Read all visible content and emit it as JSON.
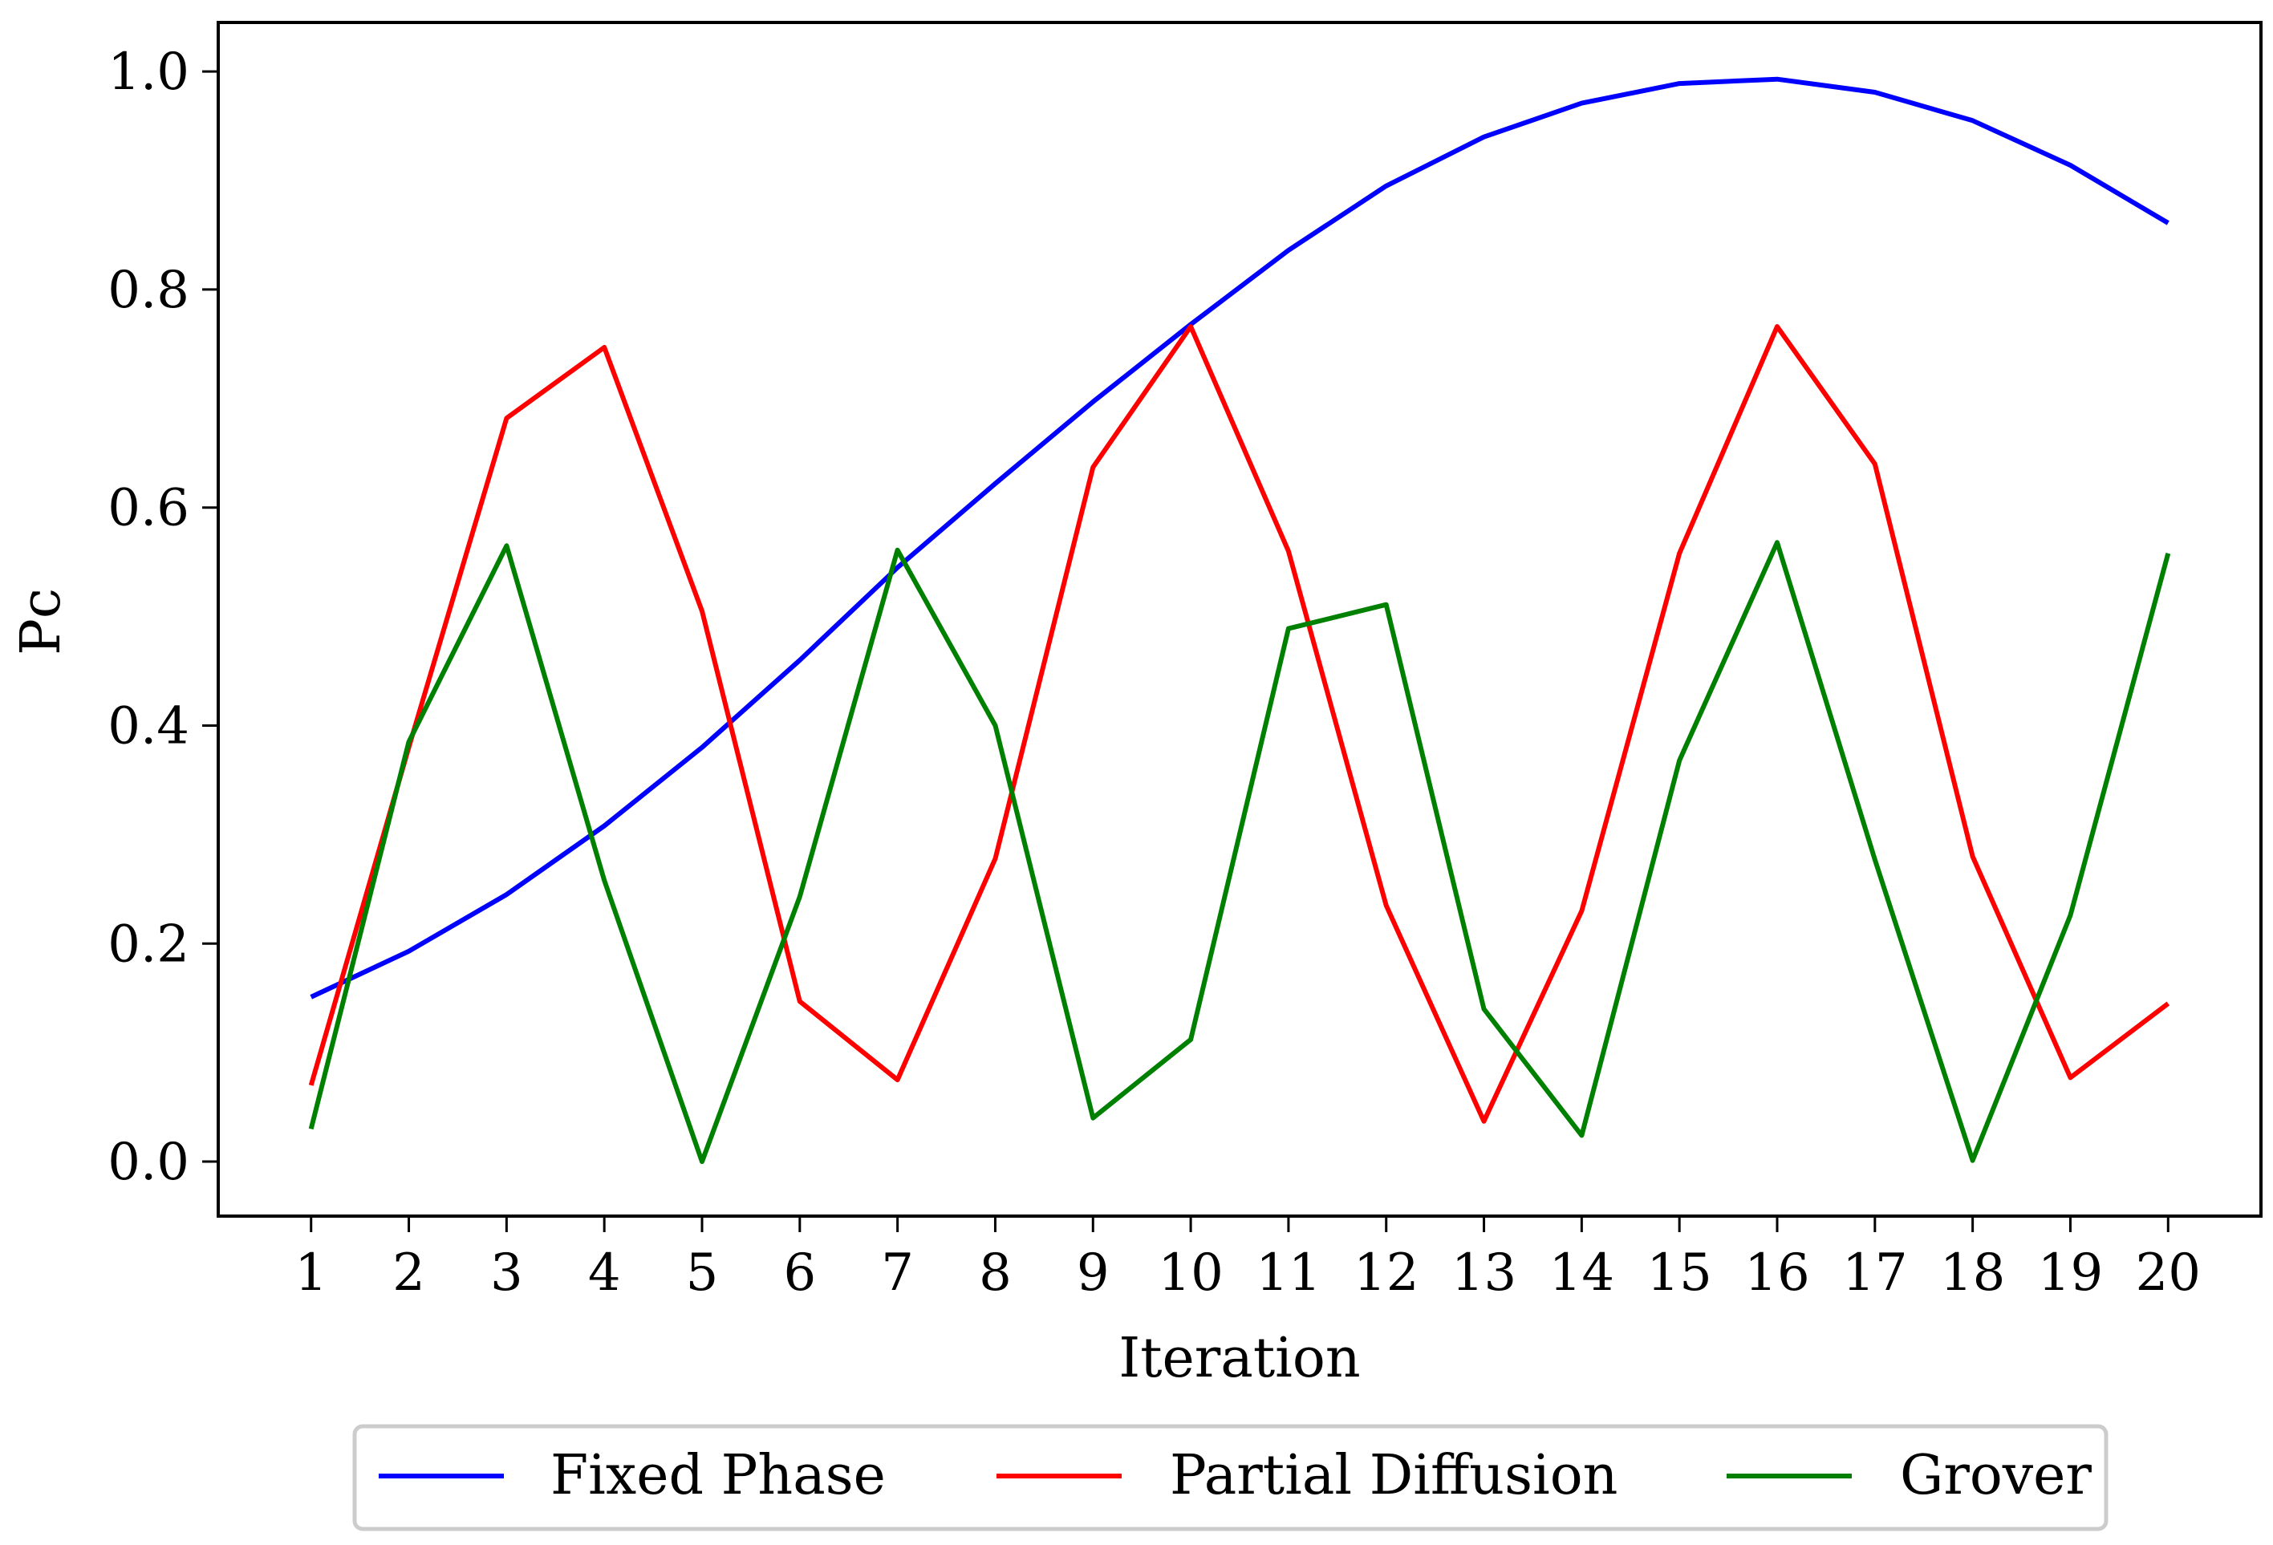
{
  "chart_data": {
    "type": "line",
    "xlabel": "Iteration",
    "ylabel": "Pc",
    "x": [
      1,
      2,
      3,
      4,
      5,
      6,
      7,
      8,
      9,
      10,
      11,
      12,
      13,
      14,
      15,
      16,
      17,
      18,
      19,
      20
    ],
    "ylim": [
      -0.05,
      1.045
    ],
    "xlim": [
      0.05,
      20.95
    ],
    "x_ticks": [
      "1",
      "2",
      "3",
      "4",
      "5",
      "6",
      "7",
      "8",
      "9",
      "10",
      "11",
      "12",
      "13",
      "14",
      "15",
      "16",
      "17",
      "18",
      "19",
      "20"
    ],
    "y_ticks": [
      "0.0",
      "0.2",
      "0.4",
      "0.6",
      "0.8",
      "1.0"
    ],
    "y_tick_values": [
      0.0,
      0.2,
      0.4,
      0.6,
      0.8,
      1.0
    ],
    "grid": false,
    "legend_position": "bottom-center",
    "series": [
      {
        "name": "Fixed Phase",
        "color": "#0000ff",
        "values": [
          0.151,
          0.193,
          0.245,
          0.308,
          0.38,
          0.46,
          0.545,
          0.622,
          0.697,
          0.768,
          0.836,
          0.895,
          0.94,
          0.971,
          0.989,
          0.993,
          0.981,
          0.955,
          0.914,
          0.861
        ]
      },
      {
        "name": "Partial Diffusion",
        "color": "#ff0000",
        "values": [
          0.07,
          0.38,
          0.682,
          0.747,
          0.505,
          0.147,
          0.075,
          0.278,
          0.637,
          0.766,
          0.56,
          0.235,
          0.037,
          0.23,
          0.558,
          0.766,
          0.64,
          0.28,
          0.077,
          0.145
        ]
      },
      {
        "name": "Grover",
        "color": "#008000",
        "values": [
          0.03,
          0.385,
          0.565,
          0.258,
          0.0,
          0.243,
          0.561,
          0.4,
          0.04,
          0.112,
          0.489,
          0.511,
          0.14,
          0.024,
          0.368,
          0.568,
          0.277,
          0.001,
          0.226,
          0.558
        ]
      }
    ]
  }
}
